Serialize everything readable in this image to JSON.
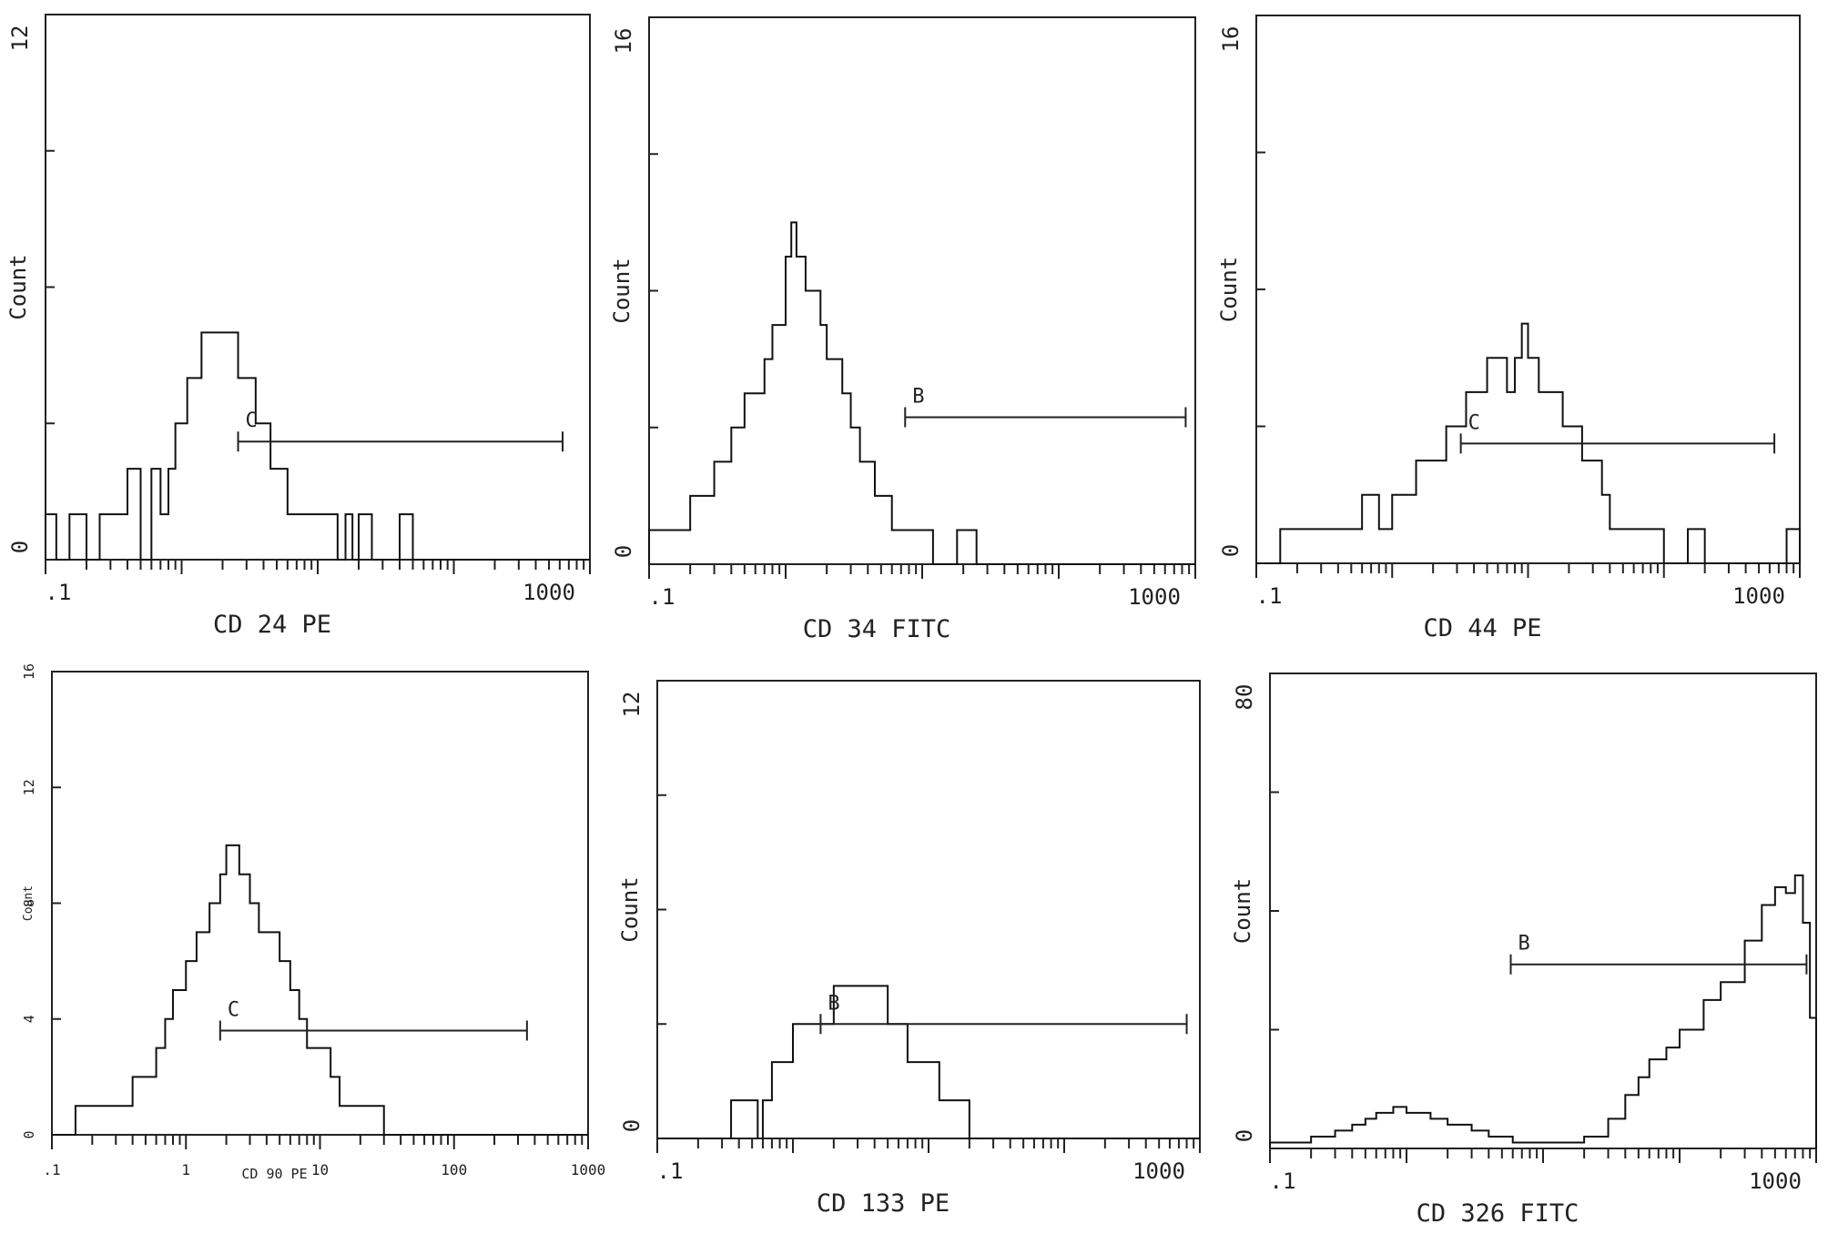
{
  "figure": {
    "panels_count": 6
  },
  "chart_data": [
    {
      "type": "histogram",
      "xlabel": "CD  24 PE",
      "ylabel": "Count",
      "xscale": "log",
      "xlim": [
        0.1,
        1000
      ],
      "ylim": [
        0,
        12
      ],
      "xtick_labels": [
        ".1",
        "1000"
      ],
      "ytick_labels": [
        "0",
        "12"
      ],
      "gate": {
        "label": "C",
        "x_start": 2.6,
        "x_end": 630,
        "y": 2.6
      },
      "histogram": {
        "x": [
          0.1,
          0.12,
          0.15,
          0.2,
          0.25,
          0.3,
          0.35,
          0.4,
          0.5,
          0.6,
          0.7,
          0.8,
          0.9,
          1.0,
          1.1,
          1.2,
          1.4,
          1.6,
          1.8,
          2.0,
          2.3,
          2.6,
          3.0,
          3.5,
          4.0,
          4.5,
          5.0,
          6.0,
          7.0,
          8.0,
          9.0,
          10,
          12,
          14,
          16,
          18,
          20,
          25,
          30,
          35,
          40,
          50,
          60,
          100,
          1000
        ],
        "y": [
          1,
          0,
          1,
          0,
          1,
          1,
          1,
          2,
          0,
          2,
          1,
          2,
          3,
          3,
          4,
          4,
          5,
          5,
          5,
          5,
          5,
          4,
          4,
          3,
          3,
          2,
          2,
          1,
          1,
          1,
          1,
          1,
          1,
          0,
          1,
          0,
          1,
          0,
          0,
          0,
          1,
          0,
          0,
          0,
          0
        ]
      }
    },
    {
      "type": "histogram",
      "xlabel": "CD  34 FITC",
      "ylabel": "Count",
      "xscale": "log",
      "xlim": [
        0.1,
        1000
      ],
      "ylim": [
        0,
        16
      ],
      "xtick_labels": [
        ".1",
        "1000"
      ],
      "ytick_labels": [
        "0",
        "16"
      ],
      "gate": {
        "label": "B",
        "x_start": 7.5,
        "x_end": 850,
        "y": 4.3
      },
      "histogram": {
        "x": [
          0.1,
          0.12,
          0.15,
          0.2,
          0.25,
          0.3,
          0.35,
          0.4,
          0.5,
          0.6,
          0.7,
          0.8,
          0.9,
          1.0,
          1.1,
          1.2,
          1.4,
          1.6,
          1.8,
          2.0,
          2.3,
          2.6,
          3.0,
          3.5,
          4.0,
          4.5,
          5.0,
          6.0,
          7.0,
          8.0,
          9.0,
          10,
          12,
          14,
          18,
          25,
          1000
        ],
        "y": [
          1,
          1,
          1,
          2,
          2,
          3,
          3,
          4,
          5,
          5,
          6,
          7,
          7,
          9,
          10,
          9,
          8,
          8,
          7,
          6,
          6,
          5,
          4,
          3,
          3,
          2,
          2,
          1,
          1,
          1,
          1,
          1,
          0,
          0,
          1,
          0,
          0
        ]
      }
    },
    {
      "type": "histogram",
      "xlabel": "CD  44 PE",
      "ylabel": "Count",
      "xscale": "log",
      "xlim": [
        0.1,
        1000
      ],
      "ylim": [
        0,
        16
      ],
      "xtick_labels": [
        ".1",
        "1000"
      ],
      "ytick_labels": [
        "0",
        "16"
      ],
      "gate": {
        "label": "C",
        "x_start": 3.2,
        "x_end": 650,
        "y": 3.5
      },
      "histogram": {
        "x": [
          0.1,
          0.15,
          0.2,
          0.3,
          0.4,
          0.5,
          0.6,
          0.8,
          1.0,
          1.2,
          1.5,
          2.0,
          2.5,
          3.0,
          3.5,
          4.0,
          5.0,
          6.0,
          7.0,
          8.0,
          9.0,
          10,
          12,
          14,
          16,
          18,
          20,
          25,
          30,
          35,
          40,
          50,
          60,
          80,
          100,
          150,
          200,
          400,
          600,
          800,
          1000
        ],
        "y": [
          0,
          1,
          1,
          1,
          1,
          1,
          2,
          1,
          2,
          2,
          3,
          3,
          4,
          4,
          5,
          5,
          6,
          6,
          5,
          6,
          7,
          6,
          5,
          5,
          5,
          4,
          4,
          3,
          3,
          2,
          1,
          1,
          1,
          1,
          0,
          1,
          0,
          0,
          0,
          1,
          0
        ]
      }
    },
    {
      "type": "histogram",
      "xlabel": "CD  90 PE",
      "ylabel": "Count",
      "xscale": "log",
      "xlim": [
        0.1,
        1000
      ],
      "ylim": [
        0,
        16
      ],
      "xtick_labels": [
        ".1",
        "1",
        "10",
        "100",
        "1000"
      ],
      "ytick_labels": [
        "0",
        "4",
        "8",
        "12",
        "16"
      ],
      "gate": {
        "label": "C",
        "x_start": 1.8,
        "x_end": 350,
        "y": 3.6
      },
      "histogram": {
        "x": [
          0.1,
          0.15,
          0.2,
          0.3,
          0.4,
          0.5,
          0.6,
          0.7,
          0.8,
          0.9,
          1.0,
          1.2,
          1.5,
          1.8,
          2.0,
          2.5,
          3.0,
          3.5,
          4.0,
          5.0,
          6.0,
          7.0,
          8.0,
          10,
          12,
          14,
          16,
          20,
          25,
          30,
          1000
        ],
        "y": [
          0,
          1,
          1,
          1,
          2,
          2,
          3,
          4,
          5,
          5,
          6,
          7,
          8,
          9,
          10,
          9,
          8,
          7,
          7,
          6,
          5,
          4,
          3,
          3,
          2,
          1,
          1,
          1,
          1,
          0,
          0
        ]
      }
    },
    {
      "type": "histogram",
      "xlabel": "CD  133 PE",
      "ylabel": "Count",
      "xscale": "log",
      "xlim": [
        0.1,
        1000
      ],
      "ylim": [
        0,
        12
      ],
      "xtick_labels": [
        ".1",
        "1000"
      ],
      "ytick_labels": [
        "0",
        "12"
      ],
      "gate": {
        "label": "B",
        "x_start": 1.6,
        "x_end": 800,
        "y": 3.0
      },
      "histogram": {
        "x": [
          0.1,
          0.3,
          0.35,
          0.5,
          0.55,
          0.6,
          0.7,
          0.8,
          1.0,
          1.3,
          1.6,
          2.0,
          2.5,
          3.0,
          3.5,
          4.0,
          5.0,
          6.0,
          7.0,
          8.0,
          10,
          12,
          14,
          20,
          1000
        ],
        "y": [
          0,
          0,
          1,
          1,
          0,
          1,
          2,
          2,
          3,
          3,
          3,
          4,
          4,
          4,
          4,
          4,
          3,
          3,
          2,
          2,
          2,
          1,
          1,
          0,
          0
        ]
      }
    },
    {
      "type": "histogram",
      "xlabel": "CD  326 FITC",
      "ylabel": "Count",
      "xscale": "log",
      "xlim": [
        0.1,
        1000
      ],
      "ylim": [
        0,
        80
      ],
      "xtick_labels": [
        ".1",
        "1000"
      ],
      "ytick_labels": [
        "0",
        "80"
      ],
      "gate": {
        "label": "B",
        "x_start": 5.8,
        "x_end": 850,
        "y": 31
      },
      "histogram": {
        "x": [
          0.1,
          0.15,
          0.2,
          0.3,
          0.4,
          0.5,
          0.6,
          0.8,
          1.0,
          1.5,
          2.0,
          3.0,
          4.0,
          6.0,
          8.0,
          10,
          15,
          20,
          30,
          40,
          50,
          60,
          80,
          100,
          150,
          200,
          300,
          400,
          500,
          600,
          700,
          800,
          900,
          1000
        ],
        "y": [
          1,
          1,
          2,
          3,
          4,
          5,
          6,
          7,
          6,
          5,
          4,
          3,
          2,
          1,
          1,
          1,
          1,
          2,
          5,
          9,
          12,
          15,
          17,
          20,
          25,
          28,
          35,
          41,
          44,
          43,
          46,
          38,
          22,
          12
        ]
      }
    }
  ]
}
